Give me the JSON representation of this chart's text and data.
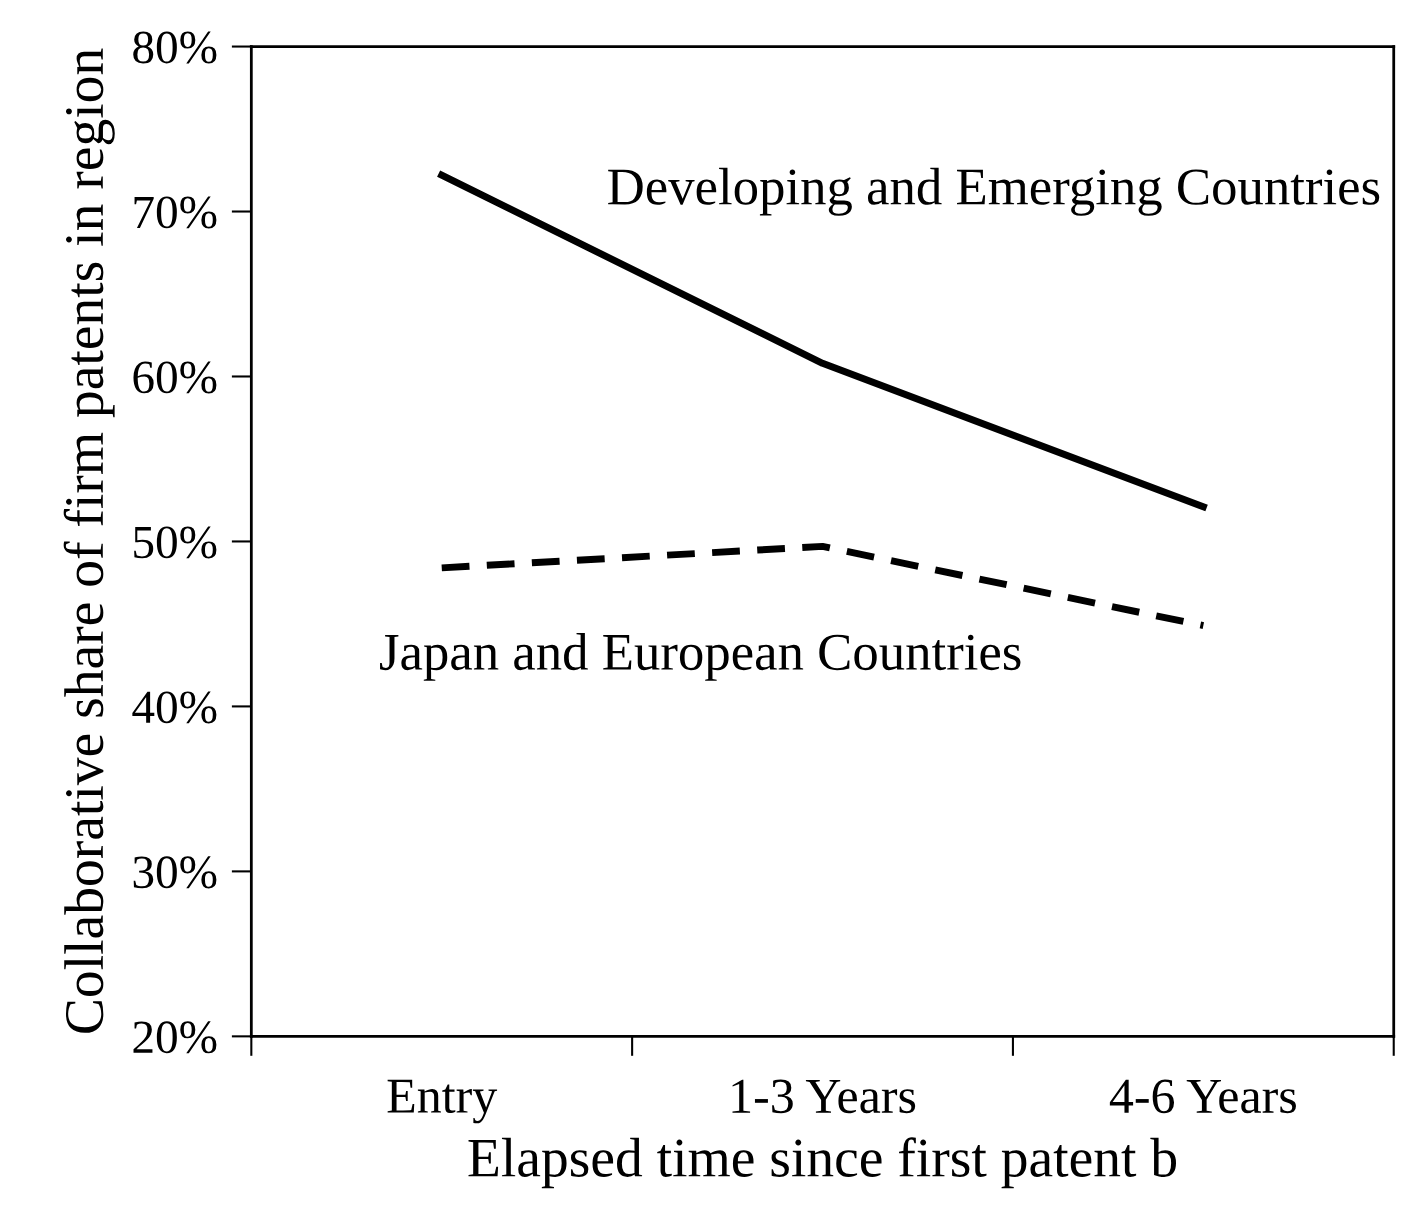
{
  "chart_data": {
    "type": "line",
    "xlabel": "Elapsed time since first patent b",
    "ylabel": "Collaborative share of firm patents in region",
    "categories": [
      "Entry",
      "1-3 Years",
      "4-6 Years"
    ],
    "series": [
      {
        "name": "Developing and Emerging Countries",
        "color": "#000000",
        "values": [
          72.2,
          60.8,
          52.1
        ],
        "line_style": "solid"
      },
      {
        "name": "Japan and European Countries",
        "color": "#000000",
        "values": [
          48.4,
          49.7,
          44.9
        ],
        "line_style": "dashed"
      }
    ],
    "ylim": [
      20,
      80
    ],
    "yticks": [
      {
        "value": 20,
        "label": "20%"
      },
      {
        "value": 30,
        "label": "30%"
      },
      {
        "value": 40,
        "label": "40%"
      },
      {
        "value": 50,
        "label": "50%"
      },
      {
        "value": 60,
        "label": "60%"
      },
      {
        "value": 70,
        "label": "70%"
      },
      {
        "value": 80,
        "label": "80%"
      }
    ],
    "grid": false,
    "legend": false,
    "marker": "none"
  }
}
